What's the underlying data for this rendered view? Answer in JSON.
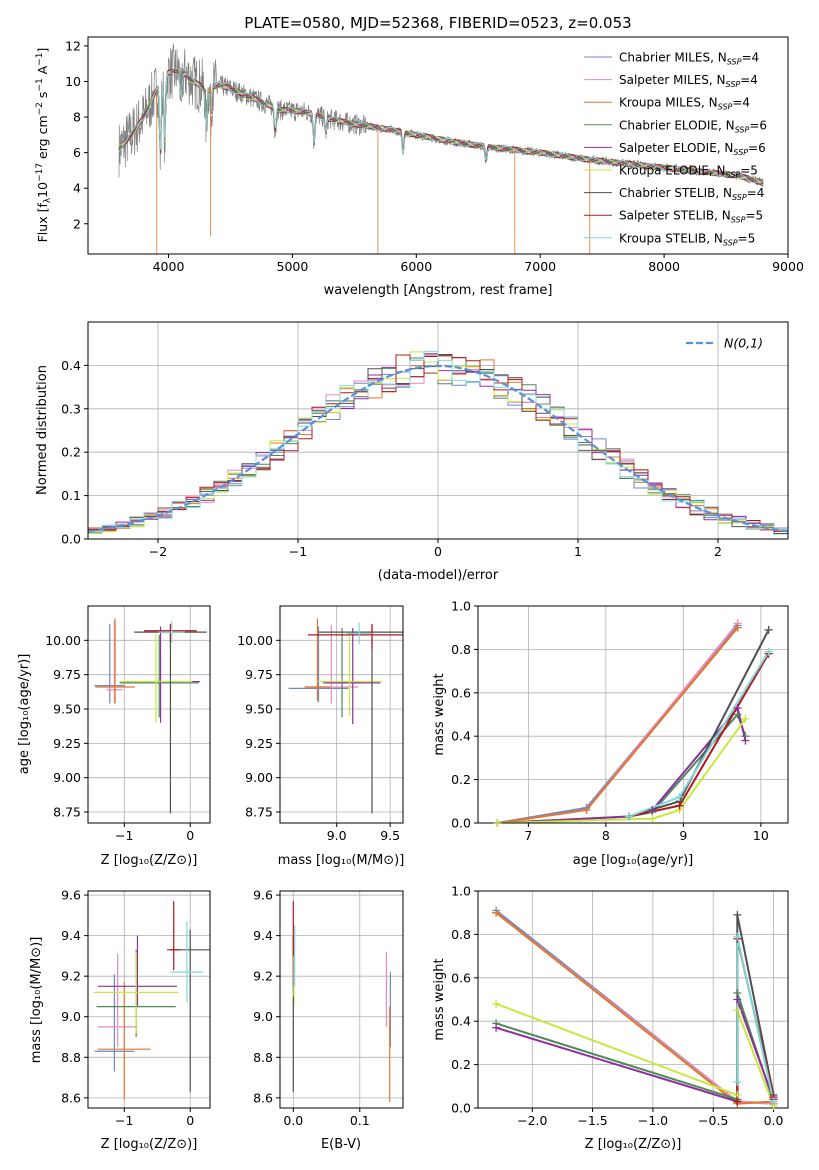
{
  "figure_title": "PLATE=0580, MJD=52368, FIBERID=0523, z=0.053",
  "series_legend": [
    {
      "name": "Chabrier MILES, N_SSP=4",
      "label_main": "Chabrier MILES, N",
      "nssp": "4",
      "color": "#6f86c8"
    },
    {
      "name": "Salpeter MILES, N_SSP=4",
      "label_main": "Salpeter MILES, N",
      "nssp": "4",
      "color": "#e78ac3"
    },
    {
      "name": "Kroupa MILES, N_SSP=4",
      "label_main": "Kroupa MILES, N",
      "nssp": "4",
      "color": "#e0782c"
    },
    {
      "name": "Chabrier ELODIE, N_SSP=6",
      "label_main": "Chabrier ELODIE, N",
      "nssp": "6",
      "color": "#4e8a55"
    },
    {
      "name": "Salpeter ELODIE, N_SSP=6",
      "label_main": "Salpeter ELODIE, N",
      "nssp": "6",
      "color": "#8e2ea3"
    },
    {
      "name": "Kroupa ELODIE, N_SSP=5",
      "label_main": "Kroupa ELODIE, N",
      "nssp": "5",
      "color": "#c8e83c"
    },
    {
      "name": "Chabrier STELIB, N_SSP=4",
      "label_main": "Chabrier STELIB, N",
      "nssp": "4",
      "color": "#505050"
    },
    {
      "name": "Salpeter STELIB, N_SSP=5",
      "label_main": "Salpeter STELIB, N",
      "nssp": "5",
      "color": "#b2181b"
    },
    {
      "name": "Kroupa STELIB, N_SSP=5",
      "label_main": "Kroupa STELIB, N",
      "nssp": "5",
      "color": "#7fd8d8"
    }
  ],
  "chart_data": [
    {
      "id": "spectrum",
      "type": "line",
      "title": "PLATE=0580, MJD=52368, FIBERID=0523, z=0.053",
      "xlabel": "wavelength [Angstrom, rest frame]",
      "ylabel": "Flux [f_λ 10^-17 erg cm^-2 s^-1 A^-1]",
      "xlim": [
        3350,
        9000
      ],
      "ylim": [
        0.3,
        12.5
      ],
      "xticks": [
        4000,
        5000,
        6000,
        7000,
        8000,
        9000
      ],
      "yticks": [
        2,
        4,
        6,
        8,
        10,
        12
      ],
      "data_color": "#808080",
      "model_color": "#7fd8d8",
      "continuum": {
        "x": [
          3600,
          3700,
          3800,
          3900,
          4000,
          4100,
          4200,
          4300,
          4400,
          4500,
          4700,
          4900,
          5100,
          5300,
          5500,
          5700,
          6000,
          6300,
          6600,
          7000,
          7400,
          7800,
          8200,
          8600,
          8800
        ],
        "y": [
          6.2,
          7.0,
          8.0,
          9.5,
          10.5,
          10.6,
          10.0,
          9.6,
          9.8,
          9.6,
          9.0,
          8.4,
          8.3,
          7.9,
          7.6,
          7.4,
          7.0,
          6.6,
          6.3,
          6.0,
          5.6,
          5.3,
          5.0,
          4.7,
          4.3
        ]
      },
      "absorption_lines": [
        {
          "x": 3934,
          "depth": 4.0
        },
        {
          "x": 3969,
          "depth": 3.5
        },
        {
          "x": 4102,
          "depth": 1.6
        },
        {
          "x": 4304,
          "depth": 2.0
        },
        {
          "x": 4341,
          "depth": 1.5
        },
        {
          "x": 4861,
          "depth": 1.4
        },
        {
          "x": 5175,
          "depth": 1.6
        },
        {
          "x": 5270,
          "depth": 0.8
        },
        {
          "x": 5893,
          "depth": 1.1
        },
        {
          "x": 6563,
          "depth": 0.8
        }
      ]
    },
    {
      "id": "residuals",
      "type": "line",
      "xlabel": "(data-model)/error",
      "ylabel": "Normed distribution",
      "xlim": [
        -2.5,
        2.5
      ],
      "ylim": [
        0,
        0.5
      ],
      "xticks": [
        -2,
        -1,
        0,
        1,
        2
      ],
      "yticks": [
        0.0,
        0.1,
        0.2,
        0.3,
        0.4
      ],
      "reference_curve": {
        "name": "N(0,1)",
        "color": "#5b8fd9"
      },
      "histogram_bin_width": 0.1
    },
    {
      "id": "age_vs_Z",
      "type": "scatter",
      "xlabel": "Z [log10(Z/Z⊙)]",
      "ylabel": "age [log10(age/yr)]",
      "xlim": [
        -1.55,
        0.3
      ],
      "ylim": [
        8.67,
        10.25
      ],
      "xticks": [
        -1,
        0
      ],
      "yticks": [
        8.75,
        9.0,
        9.25,
        9.5,
        9.75,
        10.0
      ],
      "points": [
        {
          "x": -1.22,
          "y": 9.67,
          "xerr": 0.23,
          "yerr": [
            0.13,
            0.45
          ]
        },
        {
          "x": -1.15,
          "y": 9.64,
          "xerr": 0.12,
          "yerr": [
            0.1,
            0.5
          ]
        },
        {
          "x": -1.14,
          "y": 9.66,
          "xerr": 0.3,
          "yerr": [
            0.12,
            0.5
          ]
        },
        {
          "x": -0.47,
          "y": 9.69,
          "xerr": 0.6,
          "yerr": [
            0.25,
            0.35
          ]
        },
        {
          "x": -0.45,
          "y": 9.7,
          "xerr": 0.6,
          "yerr": [
            0.3,
            0.4
          ]
        },
        {
          "x": -0.52,
          "y": 9.7,
          "xerr": 0.55,
          "yerr": [
            0.3,
            0.35
          ]
        },
        {
          "x": -0.3,
          "y": 10.06,
          "xerr": 0.55,
          "yerr": [
            1.32,
            0.05
          ]
        },
        {
          "x": -0.3,
          "y": 10.07,
          "xerr": 0.4,
          "yerr": [
            0.08,
            0.05
          ]
        },
        {
          "x": -0.28,
          "y": 10.06,
          "xerr": 0.2,
          "yerr": [
            0.08,
            0.08
          ]
        }
      ]
    },
    {
      "id": "age_vs_mass",
      "type": "scatter",
      "xlabel": "mass [log10(M/M⊙)]",
      "ylabel": "",
      "xlim": [
        8.47,
        9.62
      ],
      "ylim": [
        8.67,
        10.25
      ],
      "xticks": [
        9.0,
        9.5
      ],
      "yticks": [
        8.75,
        9.0,
        9.25,
        9.5,
        9.75,
        10.0
      ],
      "points": [
        {
          "x": 8.83,
          "y": 9.65,
          "xerr": 0.28,
          "yerr": [
            0.1,
            0.45
          ]
        },
        {
          "x": 8.95,
          "y": 9.66,
          "xerr": 0.25,
          "yerr": [
            0.12,
            0.45
          ]
        },
        {
          "x": 8.82,
          "y": 9.66,
          "xerr": 0.12,
          "yerr": [
            0.1,
            0.5
          ]
        },
        {
          "x": 9.05,
          "y": 9.69,
          "xerr": 0.18,
          "yerr": [
            0.25,
            0.4
          ]
        },
        {
          "x": 9.15,
          "y": 9.69,
          "xerr": 0.26,
          "yerr": [
            0.3,
            0.4
          ]
        },
        {
          "x": 9.12,
          "y": 9.7,
          "xerr": 0.3,
          "yerr": [
            0.25,
            0.35
          ]
        },
        {
          "x": 9.33,
          "y": 10.06,
          "xerr": 0.5,
          "yerr": [
            1.32,
            0.05
          ]
        },
        {
          "x": 9.33,
          "y": 10.04,
          "xerr": 0.6,
          "yerr": [
            0.1,
            0.08
          ]
        },
        {
          "x": 9.21,
          "y": 10.05,
          "xerr": 0.12,
          "yerr": [
            0.08,
            0.08
          ]
        }
      ]
    },
    {
      "id": "weight_vs_age",
      "type": "line",
      "xlabel": "age [log10(age/yr)]",
      "ylabel": "mass weight",
      "xlim": [
        6.35,
        10.35
      ],
      "ylim": [
        0,
        1.0
      ],
      "xticks": [
        7,
        8,
        9,
        10
      ],
      "yticks": [
        0.0,
        0.2,
        0.4,
        0.6,
        0.8,
        1.0
      ],
      "series": [
        {
          "x": [
            6.6,
            7.75,
            9.7
          ],
          "y": [
            0.0,
            0.07,
            0.91
          ]
        },
        {
          "x": [
            6.6,
            7.75,
            9.7
          ],
          "y": [
            0.0,
            0.06,
            0.92
          ]
        },
        {
          "x": [
            6.6,
            7.75,
            9.7
          ],
          "y": [
            0.0,
            0.06,
            0.9
          ]
        },
        {
          "x": [
            6.6,
            8.3,
            8.6,
            9.7,
            9.8
          ],
          "y": [
            0.0,
            0.03,
            0.05,
            0.5,
            0.4
          ]
        },
        {
          "x": [
            6.6,
            8.3,
            8.6,
            9.7,
            9.8
          ],
          "y": [
            0.0,
            0.03,
            0.06,
            0.53,
            0.38
          ]
        },
        {
          "x": [
            6.6,
            8.6,
            8.95,
            9.8
          ],
          "y": [
            0.0,
            0.02,
            0.06,
            0.48
          ]
        },
        {
          "x": [
            8.3,
            8.95,
            10.1
          ],
          "y": [
            0.03,
            0.1,
            0.89
          ]
        },
        {
          "x": [
            8.3,
            8.95,
            10.1
          ],
          "y": [
            0.03,
            0.08,
            0.78
          ]
        },
        {
          "x": [
            8.3,
            8.95,
            10.1
          ],
          "y": [
            0.03,
            0.12,
            0.79
          ]
        }
      ]
    },
    {
      "id": "mass_vs_Z",
      "type": "scatter",
      "xlabel": "Z [log10(Z/Z⊙)]",
      "ylabel": "mass [log10(M/M⊙)]",
      "xlim": [
        -1.55,
        0.3
      ],
      "ylim": [
        8.55,
        9.62
      ],
      "xticks": [
        -1,
        0
      ],
      "yticks": [
        8.6,
        8.8,
        9.0,
        9.2,
        9.4,
        9.6
      ],
      "points": [
        {
          "x": -1.15,
          "y": 8.83,
          "xerr": 0.3,
          "yerr": [
            0.1,
            0.38
          ]
        },
        {
          "x": -1.1,
          "y": 8.95,
          "xerr": 0.3,
          "yerr": [
            0.1,
            0.36
          ]
        },
        {
          "x": -1.0,
          "y": 8.84,
          "xerr": 0.4,
          "yerr": [
            0.25,
            0.33
          ]
        },
        {
          "x": -0.82,
          "y": 9.05,
          "xerr": 0.6,
          "yerr": [
            0.15,
            0.28
          ]
        },
        {
          "x": -0.8,
          "y": 9.15,
          "xerr": 0.6,
          "yerr": [
            0.1,
            0.25
          ]
        },
        {
          "x": -0.82,
          "y": 9.12,
          "xerr": 0.65,
          "yerr": [
            0.2,
            0.2
          ]
        },
        {
          "x": 0.0,
          "y": 9.33,
          "xerr": 0.3,
          "yerr": [
            0.7,
            0.1
          ]
        },
        {
          "x": -0.25,
          "y": 9.33,
          "xerr": 0.1,
          "yerr": [
            0.1,
            0.24
          ]
        },
        {
          "x": -0.05,
          "y": 9.22,
          "xerr": 0.25,
          "yerr": [
            0.15,
            0.25
          ]
        }
      ]
    },
    {
      "id": "mass_vs_EBV",
      "type": "scatter",
      "xlabel": "E(B-V)",
      "ylabel": "",
      "xlim": [
        -0.02,
        0.165
      ],
      "ylim": [
        8.55,
        9.62
      ],
      "xticks": [
        0.0,
        0.1
      ],
      "yticks": [
        8.6,
        8.8,
        9.0,
        9.2,
        9.4,
        9.6
      ],
      "points": [
        {
          "x": 0.146,
          "y": 9.0,
          "yerr": [
            0.15,
            0.22
          ]
        },
        {
          "x": 0.14,
          "y": 9.1,
          "yerr": [
            0.15,
            0.22
          ]
        },
        {
          "x": 0.145,
          "y": 8.9,
          "yerr": [
            0.32,
            0.15
          ]
        },
        {
          "x": 0.0,
          "y": 9.2,
          "yerr": [
            0.1,
            0.2
          ]
        },
        {
          "x": 0.0,
          "y": 9.25,
          "yerr": [
            0.1,
            0.15
          ]
        },
        {
          "x": 0.001,
          "y": 9.2,
          "yerr": [
            0.15,
            0.2
          ]
        },
        {
          "x": 0.0,
          "y": 9.0,
          "yerr": [
            0.37,
            0.1
          ]
        },
        {
          "x": 0.0,
          "y": 9.4,
          "yerr": [
            0.1,
            0.17
          ]
        },
        {
          "x": 0.002,
          "y": 9.3,
          "yerr": [
            0.15,
            0.15
          ]
        }
      ]
    },
    {
      "id": "weight_vs_Z",
      "type": "line",
      "xlabel": "Z [log10(Z/Z⊙)]",
      "ylabel": "mass weight",
      "xlim": [
        -2.45,
        0.12
      ],
      "ylim": [
        0,
        1.0
      ],
      "xticks": [
        -2.0,
        -1.5,
        -1.0,
        -0.5,
        0.0
      ],
      "yticks": [
        0.0,
        0.2,
        0.4,
        0.6,
        0.8,
        1.0
      ],
      "series": [
        {
          "x": [
            -2.3,
            -0.3,
            0.0
          ],
          "y": [
            0.91,
            0.03,
            0.02
          ]
        },
        {
          "x": [
            -2.3,
            -0.3,
            0.0
          ],
          "y": [
            0.9,
            0.03,
            0.02
          ]
        },
        {
          "x": [
            -2.3,
            -0.3,
            0.0
          ],
          "y": [
            0.9,
            0.02,
            0.03
          ]
        },
        {
          "x": [
            -2.3,
            -0.3,
            -0.3,
            0.0
          ],
          "y": [
            0.39,
            0.04,
            0.53,
            0.03
          ]
        },
        {
          "x": [
            -2.3,
            -0.3,
            -0.3,
            0.0
          ],
          "y": [
            0.37,
            0.03,
            0.5,
            0.04
          ]
        },
        {
          "x": [
            -2.3,
            -0.3,
            -0.3,
            0.0
          ],
          "y": [
            0.48,
            0.06,
            0.45,
            0.01
          ]
        },
        {
          "x": [
            -0.3,
            -0.3,
            0.0
          ],
          "y": [
            0.03,
            0.89,
            0.06
          ]
        },
        {
          "x": [
            -0.3,
            -0.3,
            0.0
          ],
          "y": [
            0.03,
            0.78,
            0.05
          ]
        },
        {
          "x": [
            -0.3,
            -0.3,
            0.0
          ],
          "y": [
            0.12,
            0.79,
            0.03
          ]
        }
      ]
    }
  ]
}
